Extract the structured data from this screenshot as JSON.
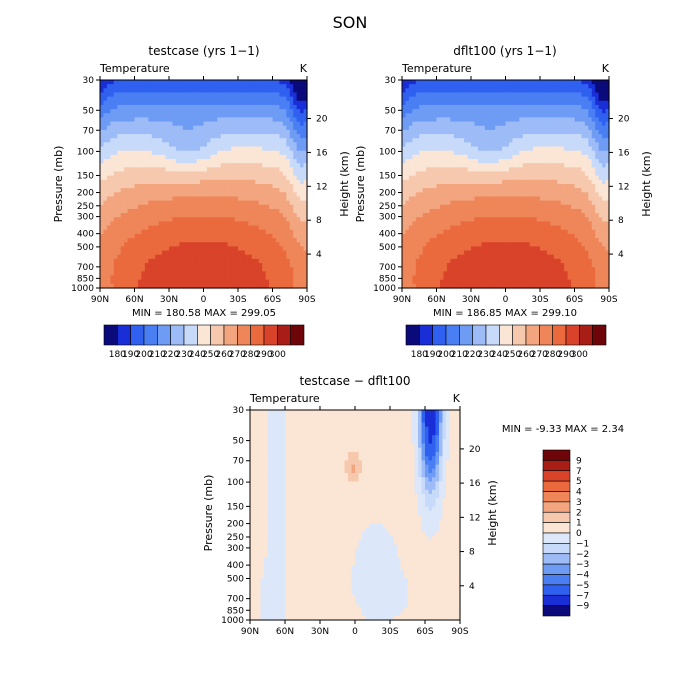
{
  "title": "SON",
  "colors": {
    "temp_palette": [
      "#0a0a7a",
      "#1a2ed8",
      "#2f60f0",
      "#4a7ff3",
      "#6e9cf5",
      "#9dbcf7",
      "#c8dafa",
      "#fbe5d4",
      "#f6c8ad",
      "#f2a57f",
      "#ee8659",
      "#ea6a3e",
      "#d9432a",
      "#a81d16",
      "#6e0508"
    ],
    "diff_palette": [
      "#0a0a7a",
      "#1a2ed8",
      "#2f60f0",
      "#4a7ff3",
      "#6e9cf5",
      "#9dbcf7",
      "#c8dafa",
      "#dce8fa",
      "#fbe5d4",
      "#f6c8ad",
      "#f2a57f",
      "#ee8659",
      "#ea6a3e",
      "#d9432a",
      "#a81d16",
      "#6e0508"
    ]
  },
  "chart_data": [
    {
      "type": "heatmap",
      "title": "testcase (yrs 1−1)",
      "subtitle": "Temperature",
      "units": "K",
      "ylabel": "Pressure (mb)",
      "y2label": "Height (km)",
      "x_ticks": [
        "90N",
        "60N",
        "30N",
        "0",
        "30S",
        "60S",
        "90S"
      ],
      "y_ticks": [
        "30",
        "50",
        "70",
        "100",
        "150",
        "200",
        "250",
        "300",
        "400",
        "500",
        "700",
        "850",
        "1000"
      ],
      "y2_ticks": [
        "20",
        "16",
        "12",
        "8",
        "4"
      ],
      "min_max": "MIN = 180.58   MAX = 299.05",
      "colorbar_labels": [
        "180",
        "190",
        "200",
        "210",
        "220",
        "230",
        "240",
        "250",
        "260",
        "270",
        "280",
        "290",
        "300"
      ],
      "range": [
        180.58,
        299.05
      ]
    },
    {
      "type": "heatmap",
      "title": "dflt100 (yrs 1−1)",
      "subtitle": "Temperature",
      "units": "K",
      "ylabel": "Pressure (mb)",
      "y2label": "Height (km)",
      "x_ticks": [
        "90N",
        "60N",
        "30N",
        "0",
        "30S",
        "60S",
        "90S"
      ],
      "y_ticks": [
        "30",
        "50",
        "70",
        "100",
        "150",
        "200",
        "250",
        "300",
        "400",
        "500",
        "700",
        "850",
        "1000"
      ],
      "y2_ticks": [
        "20",
        "16",
        "12",
        "8",
        "4"
      ],
      "min_max": "MIN = 186.85   MAX = 299.10",
      "colorbar_labels": [
        "180",
        "190",
        "200",
        "210",
        "220",
        "230",
        "240",
        "250",
        "260",
        "270",
        "280",
        "290",
        "300"
      ],
      "range": [
        186.85,
        299.1
      ]
    },
    {
      "type": "heatmap",
      "title": "testcase − dflt100",
      "subtitle": "Temperature",
      "units": "K",
      "ylabel": "Pressure (mb)",
      "y2label": "Height (km)",
      "x_ticks": [
        "90N",
        "60N",
        "30N",
        "0",
        "30S",
        "60S",
        "90S"
      ],
      "y_ticks": [
        "30",
        "50",
        "70",
        "100",
        "150",
        "200",
        "250",
        "300",
        "400",
        "500",
        "700",
        "850",
        "1000"
      ],
      "y2_ticks": [
        "20",
        "16",
        "12",
        "8",
        "4"
      ],
      "min_max": "MIN =  -9.33   MAX =   2.34",
      "colorbar_labels": [
        "9",
        "7",
        "5",
        "4",
        "3",
        "2",
        "1",
        "0",
        "−1",
        "−2",
        "−3",
        "−4",
        "−5",
        "−7",
        "−9"
      ],
      "range": [
        -9.33,
        2.34
      ]
    }
  ]
}
